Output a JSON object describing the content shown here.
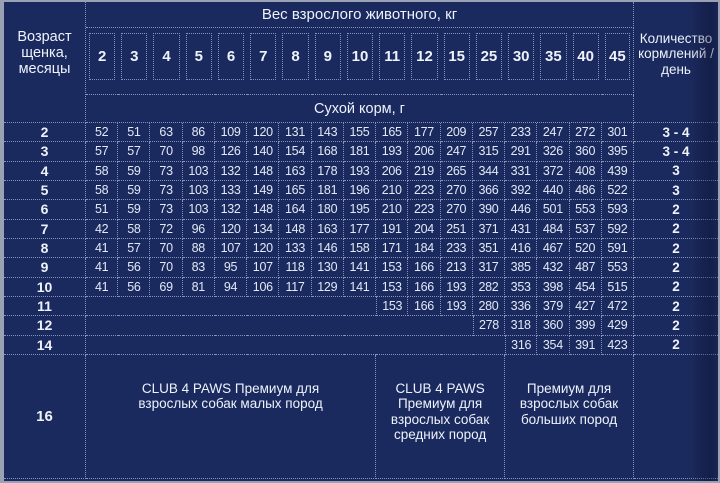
{
  "colors": {
    "background": "#1b2a5e",
    "frame_border": "#99a1b3",
    "dotted_grid": "#c8d4f0",
    "text": "#eef2fb"
  },
  "chart_data": {
    "type": "table",
    "title": "Вес взрослого животного, кг",
    "corner_header": "Возраст\nщенка,\nмесяцы",
    "feedings_header": "Количество\nкормлений /\nдень",
    "unit_row": "Сухой корм, г",
    "weight_columns": [
      "2",
      "3",
      "4",
      "5",
      "6",
      "7",
      "8",
      "9",
      "10",
      "11",
      "12",
      "15",
      "25",
      "30",
      "35",
      "40",
      "45"
    ],
    "rows": [
      {
        "age": "2",
        "values": [
          "52",
          "51",
          "63",
          "86",
          "109",
          "120",
          "131",
          "143",
          "155",
          "165",
          "177",
          "209",
          "257",
          "233",
          "247",
          "272",
          "301"
        ],
        "feedings": "3 - 4"
      },
      {
        "age": "3",
        "values": [
          "57",
          "57",
          "70",
          "98",
          "126",
          "140",
          "154",
          "168",
          "181",
          "193",
          "206",
          "247",
          "315",
          "291",
          "326",
          "360",
          "395"
        ],
        "feedings": "3 - 4"
      },
      {
        "age": "4",
        "values": [
          "58",
          "59",
          "73",
          "103",
          "132",
          "148",
          "163",
          "178",
          "193",
          "206",
          "219",
          "265",
          "344",
          "331",
          "372",
          "408",
          "439"
        ],
        "feedings": "3"
      },
      {
        "age": "5",
        "values": [
          "58",
          "59",
          "73",
          "103",
          "133",
          "149",
          "165",
          "181",
          "196",
          "210",
          "223",
          "270",
          "366",
          "392",
          "440",
          "486",
          "522"
        ],
        "feedings": "3"
      },
      {
        "age": "6",
        "values": [
          "51",
          "59",
          "73",
          "103",
          "132",
          "148",
          "164",
          "180",
          "195",
          "210",
          "223",
          "270",
          "390",
          "446",
          "501",
          "553",
          "593"
        ],
        "feedings": "2"
      },
      {
        "age": "7",
        "values": [
          "42",
          "58",
          "72",
          "96",
          "120",
          "134",
          "148",
          "163",
          "177",
          "191",
          "204",
          "251",
          "371",
          "431",
          "484",
          "537",
          "592"
        ],
        "feedings": "2"
      },
      {
        "age": "8",
        "values": [
          "41",
          "57",
          "70",
          "88",
          "107",
          "120",
          "133",
          "146",
          "158",
          "171",
          "184",
          "233",
          "351",
          "416",
          "467",
          "520",
          "591"
        ],
        "feedings": "2"
      },
      {
        "age": "9",
        "values": [
          "41",
          "56",
          "70",
          "83",
          "95",
          "107",
          "118",
          "130",
          "141",
          "153",
          "166",
          "213",
          "317",
          "385",
          "432",
          "487",
          "553"
        ],
        "feedings": "2"
      },
      {
        "age": "10",
        "values": [
          "41",
          "56",
          "69",
          "81",
          "94",
          "106",
          "117",
          "129",
          "141",
          "153",
          "166",
          "193",
          "282",
          "353",
          "398",
          "454",
          "515"
        ],
        "feedings": "2"
      },
      {
        "age": "11",
        "values": [
          "",
          "",
          "",
          "",
          "",
          "",
          "",
          "",
          "",
          "153",
          "166",
          "193",
          "280",
          "336",
          "379",
          "427",
          "472"
        ],
        "feedings": "2"
      },
      {
        "age": "12",
        "values": [
          "",
          "",
          "",
          "",
          "",
          "",
          "",
          "",
          "",
          "",
          "",
          "",
          "278",
          "318",
          "360",
          "399",
          "429"
        ],
        "feedings": "2"
      },
      {
        "age": "14",
        "values": [
          "",
          "",
          "",
          "",
          "",
          "",
          "",
          "",
          "",
          "",
          "",
          "",
          "",
          "316",
          "354",
          "391",
          "423"
        ],
        "feedings": "2"
      }
    ],
    "bottom_row": {
      "age": "16",
      "products": [
        {
          "label": "CLUB 4 PAWS Премиум для\nвзрослых собак малых пород",
          "col_start": 1,
          "col_end": 9
        },
        {
          "label": "CLUB 4 PAWS\nПремиум для\nвзрослых собак\nсредних пород",
          "col_start": 10,
          "col_end": 13
        },
        {
          "label": "Премиум для\nвзрослых собак\nбольших пород",
          "col_start": 14,
          "col_end": 17
        }
      ]
    }
  }
}
